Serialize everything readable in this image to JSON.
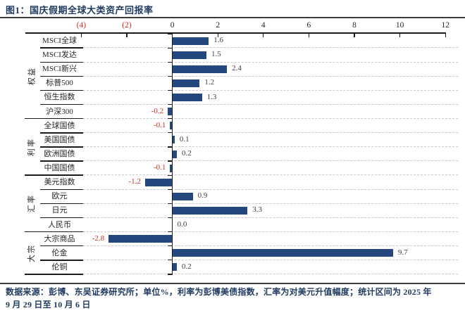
{
  "title": "图1：国庆假期全球大类资产回报率",
  "footer": {
    "line1": "数据来源：彭博、东吴证券研究所；单位%，利率为彭博美债指数，汇率为对美元升值幅度；统计区间为 2025 年",
    "line2": "9 月 29 日至 10 月 6 日"
  },
  "colors": {
    "bar": "#24477d",
    "negative": "#cf2e24",
    "title_text": "#1e3a5f",
    "axis": "#1a1a1a",
    "grid": "#c9c9c9",
    "value_text": "#3f3f3f"
  },
  "chart_data": {
    "type": "bar",
    "orientation": "horizontal",
    "title": "国庆假期全球大类资产回报率",
    "unit": "%",
    "xlim": [
      -4,
      12
    ],
    "grid": "dashed horizontal row separators",
    "legend": "none",
    "xticks": [
      {
        "value": -4,
        "label": "(4)"
      },
      {
        "value": -2,
        "label": "(2)"
      },
      {
        "value": 0,
        "label": "0"
      },
      {
        "value": 2,
        "label": "2"
      },
      {
        "value": 4,
        "label": "4"
      },
      {
        "value": 6,
        "label": "6"
      },
      {
        "value": 8,
        "label": "8"
      },
      {
        "value": 10,
        "label": "10"
      },
      {
        "value": 12,
        "label": "12"
      }
    ],
    "groups": [
      {
        "name": "权益",
        "items": [
          {
            "label": "MSCI全球",
            "value": 1.6,
            "display": "1.6"
          },
          {
            "label": "MSCI发达",
            "value": 1.5,
            "display": "1.5"
          },
          {
            "label": "MSCI新兴",
            "value": 2.4,
            "display": "2.4"
          },
          {
            "label": "标普500",
            "value": 1.2,
            "display": "1.2"
          },
          {
            "label": "恒生指数",
            "value": 1.3,
            "display": "1.3"
          },
          {
            "label": "沪深300",
            "value": -0.2,
            "display": "-0.2"
          }
        ]
      },
      {
        "name": "利率",
        "items": [
          {
            "label": "全球国债",
            "value": -0.1,
            "display": "-0.1"
          },
          {
            "label": "美国国债",
            "value": 0.1,
            "display": "0.1"
          },
          {
            "label": "欧洲国债",
            "value": 0.2,
            "display": "0.2"
          },
          {
            "label": "中国国债",
            "value": -0.1,
            "display": "-0.1"
          }
        ]
      },
      {
        "name": "汇率",
        "items": [
          {
            "label": "美元指数",
            "value": -1.2,
            "display": "-1.2"
          },
          {
            "label": "欧元",
            "value": 0.9,
            "display": "0.9"
          },
          {
            "label": "日元",
            "value": 3.3,
            "display": "3.3"
          },
          {
            "label": "人民币",
            "value": 0.0,
            "display": "0.0"
          }
        ]
      },
      {
        "name": "大宗",
        "items": [
          {
            "label": "大宗商品",
            "value": -2.8,
            "display": "-2.8"
          },
          {
            "label": "伦金",
            "value": 9.7,
            "display": "9.7"
          },
          {
            "label": "伦铜",
            "value": 0.2,
            "display": "0.2"
          }
        ]
      }
    ]
  }
}
